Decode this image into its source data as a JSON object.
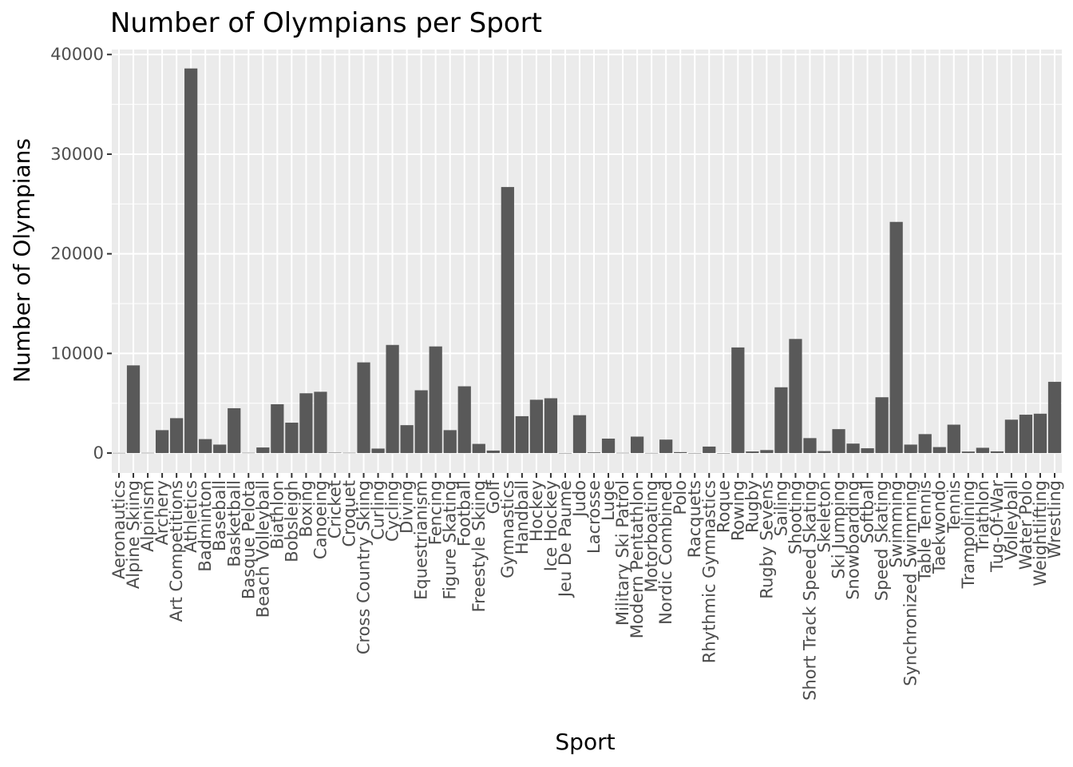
{
  "chart_data": {
    "type": "bar",
    "title": "Number of Olympians per Sport",
    "xlabel": "Sport",
    "ylabel": "Number of Olympians",
    "ylim": [
      -2000,
      40500
    ],
    "yticks": [
      0,
      10000,
      20000,
      30000,
      40000
    ],
    "ytick_labels": [
      "0",
      "10000",
      "20000",
      "30000",
      "40000"
    ],
    "grid": true,
    "legend": "none",
    "colors": {
      "bar": "#595959",
      "panel": "#ebebeb",
      "grid": "#ffffff",
      "tick_text": "#4d4d4d"
    },
    "categories": [
      "Aeronautics",
      "Alpine Skiing",
      "Alpinism",
      "Archery",
      "Art Competitions",
      "Athletics",
      "Badminton",
      "Baseball",
      "Basketball",
      "Basque Pelota",
      "Beach Volleyball",
      "Biathlon",
      "Bobsleigh",
      "Boxing",
      "Canoeing",
      "Cricket",
      "Croquet",
      "Cross Country Skiing",
      "Curling",
      "Cycling",
      "Diving",
      "Equestrianism",
      "Fencing",
      "Figure Skating",
      "Football",
      "Freestyle Skiing",
      "Golf",
      "Gymnastics",
      "Handball",
      "Hockey",
      "Ice Hockey",
      "Jeu De Paume",
      "Judo",
      "Lacrosse",
      "Luge",
      "Military Ski Patrol",
      "Modern Pentathlon",
      "Motorboating",
      "Nordic Combined",
      "Polo",
      "Racquets",
      "Rhythmic Gymnastics",
      "Roque",
      "Rowing",
      "Rugby",
      "Rugby Sevens",
      "Sailing",
      "Shooting",
      "Short Track Speed Skating",
      "Skeleton",
      "Ski Jumping",
      "Snowboarding",
      "Softball",
      "Speed Skating",
      "Swimming",
      "Synchronized Swimming",
      "Table Tennis",
      "Taekwondo",
      "Tennis",
      "Trampolining",
      "Triathlon",
      "Tug-Of-War",
      "Volleyball",
      "Water Polo",
      "Weightlifting",
      "Wrestling"
    ],
    "values": [
      20,
      8800,
      25,
      2300,
      3500,
      38600,
      1400,
      850,
      4500,
      30,
      560,
      4900,
      3050,
      6000,
      6150,
      45,
      30,
      9100,
      450,
      10850,
      2800,
      6300,
      10700,
      2300,
      6700,
      920,
      250,
      26700,
      3700,
      5350,
      5500,
      11,
      3800,
      70,
      1450,
      25,
      1650,
      15,
      1350,
      95,
      10,
      650,
      5,
      10600,
      160,
      300,
      6600,
      11450,
      1500,
      200,
      2400,
      950,
      480,
      5600,
      23200,
      850,
      1900,
      600,
      2850,
      150,
      530,
      170,
      3350,
      3850,
      3950,
      7150
    ]
  }
}
